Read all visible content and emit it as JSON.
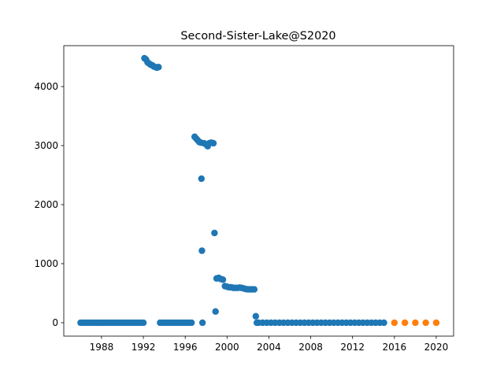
{
  "chart_data": {
    "type": "scatter",
    "title": "Second-Sister-Lake@S2020",
    "xlim": [
      1984.39,
      2021.66
    ],
    "xticks": [
      1988,
      1992,
      1996,
      2000,
      2004,
      2008,
      2012,
      2016,
      2020
    ],
    "ylim": [
      -227,
      4693
    ],
    "yticks": [
      0,
      1000,
      2000,
      3000,
      4000
    ],
    "grid": false,
    "series": [
      {
        "color": "#1f77b4",
        "x": [
          1986.0,
          1986.25,
          1986.5,
          1986.75,
          1987.0,
          1987.25,
          1987.5,
          1987.75,
          1988.0,
          1988.25,
          1988.5,
          1988.75,
          1989.0,
          1989.25,
          1989.5,
          1989.75,
          1990.0,
          1990.25,
          1990.5,
          1990.75,
          1991.0,
          1991.25,
          1991.5,
          1991.75,
          1992.0,
          1992.1,
          1992.25,
          1992.4,
          1992.55,
          1992.7,
          1992.85,
          1993.0,
          1993.15,
          1993.3,
          1993.45,
          1993.6,
          1993.85,
          1994.1,
          1994.35,
          1994.6,
          1994.85,
          1995.1,
          1995.35,
          1995.6,
          1995.85,
          1996.1,
          1996.35,
          1996.6,
          1996.9,
          1997.05,
          1997.2,
          1997.35,
          1997.5,
          1997.55,
          1997.6,
          1997.65,
          1997.8,
          1998.0,
          1998.15,
          1998.3,
          1998.5,
          1998.7,
          1998.8,
          1998.9,
          1999.0,
          1999.2,
          1999.4,
          1999.6,
          1999.8,
          2000.0,
          2000.2,
          2000.4,
          2000.6,
          2000.8,
          2001.0,
          2001.2,
          2001.4,
          2001.6,
          2001.8,
          2002.0,
          2002.2,
          2002.4,
          2002.6,
          2002.75,
          2002.85,
          2003.0,
          2003.4,
          2003.8,
          2004.2,
          2004.6,
          2005.0,
          2005.4,
          2005.8,
          2006.2,
          2006.6,
          2007.0,
          2007.4,
          2007.8,
          2008.2,
          2008.6,
          2009.0,
          2009.4,
          2009.8,
          2010.2,
          2010.6,
          2011.0,
          2011.4,
          2011.8,
          2012.2,
          2012.6,
          2013.0,
          2013.4,
          2013.8,
          2014.2,
          2014.6,
          2015.0
        ],
        "values": [
          0,
          0,
          0,
          0,
          0,
          0,
          0,
          0,
          0,
          0,
          0,
          0,
          0,
          0,
          0,
          0,
          0,
          0,
          0,
          0,
          0,
          0,
          0,
          0,
          0,
          4480,
          4460,
          4410,
          4390,
          4370,
          4360,
          4340,
          4330,
          4320,
          4330,
          0,
          0,
          0,
          0,
          0,
          0,
          0,
          0,
          0,
          0,
          0,
          0,
          0,
          3150,
          3120,
          3090,
          3060,
          3050,
          2440,
          1220,
          0,
          3040,
          3020,
          2990,
          3040,
          3050,
          3040,
          1520,
          190,
          750,
          760,
          740,
          730,
          620,
          610,
          600,
          600,
          590,
          590,
          590,
          595,
          590,
          580,
          570,
          565,
          565,
          565,
          565,
          110,
          0,
          0,
          0,
          0,
          0,
          0,
          0,
          0,
          0,
          0,
          0,
          0,
          0,
          0,
          0,
          0,
          0,
          0,
          0,
          0,
          0,
          0,
          0,
          0,
          0,
          0,
          0,
          0,
          0,
          0,
          0,
          0
        ]
      },
      {
        "color": "#ff7f0e",
        "x": [
          2016,
          2017,
          2018,
          2019,
          2020
        ],
        "values": [
          0,
          0,
          0,
          0,
          0
        ]
      }
    ]
  }
}
